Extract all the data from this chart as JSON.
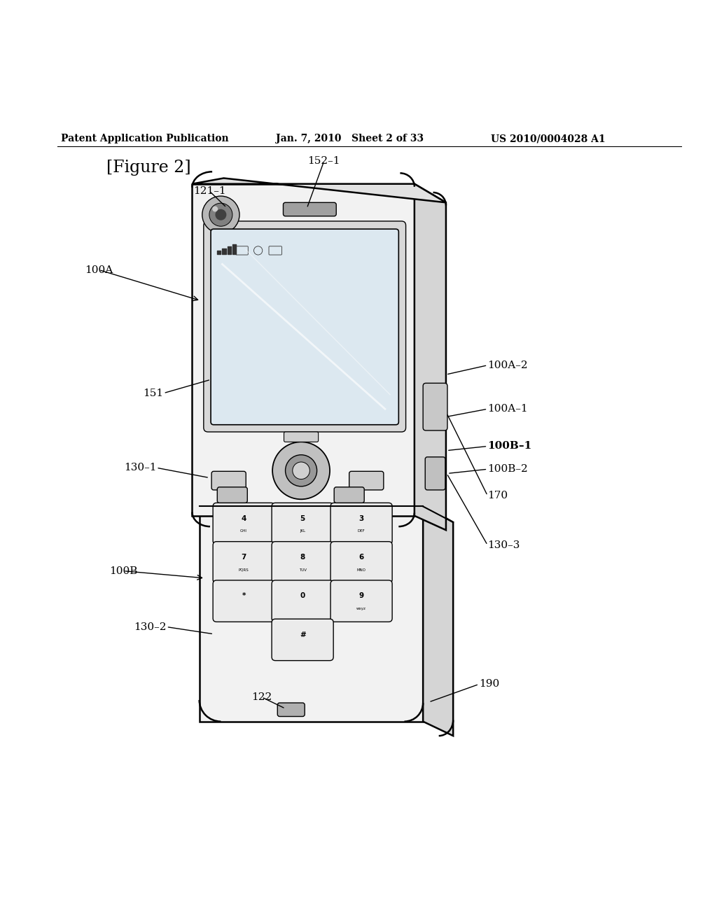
{
  "header_left": "Patent Application Publication",
  "header_mid": "Jan. 7, 2010   Sheet 2 of 33",
  "header_right": "US 2010/0004028 A1",
  "figure_label": "[Figure 2]",
  "bg_color": "#ffffff",
  "line_color": "#000000",
  "body_fill": "#f2f2f2",
  "side_fill": "#d5d5d5",
  "top_fill": "#e2e2e2",
  "screen_fill": "#dce8f0",
  "key_fill": "#ebebeb",
  "lw_main": 1.8,
  "lw_thin": 1.0,
  "label_fontsize": 11,
  "keypad_rows": [
    [
      [
        "4",
        "GHI"
      ],
      [
        "5",
        "JKL"
      ],
      [
        "3",
        "DEF"
      ]
    ],
    [
      [
        "7",
        "PQRS"
      ],
      [
        "8",
        "TUV"
      ],
      [
        "6",
        "MNO"
      ]
    ],
    [
      [
        "*",
        ""
      ],
      [
        "0",
        ""
      ],
      [
        "9",
        "wxyz"
      ]
    ],
    [
      [
        "",
        ""
      ],
      [
        "#",
        ""
      ],
      [
        "",
        ""
      ]
    ]
  ]
}
